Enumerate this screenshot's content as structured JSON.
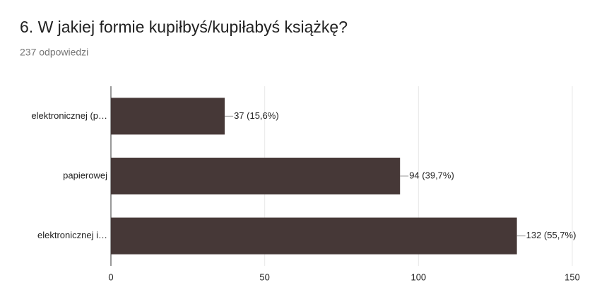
{
  "chart_data": {
    "type": "bar",
    "orientation": "horizontal",
    "title": "6. W jakiej formie kupiłbyś/kupiłabyś książkę?",
    "subtitle": "237 odpowiedzi",
    "categories": [
      "elektronicznej (p…",
      "papierowej",
      "elektronicznej i…"
    ],
    "values": [
      37,
      94,
      132
    ],
    "value_labels": [
      "37 (15,6%)",
      "94 (39,7%)",
      "132 (55,7%)"
    ],
    "color": "#463837",
    "xlim": [
      0,
      150
    ],
    "xticks": [
      0,
      50,
      100,
      150
    ],
    "grid": true
  }
}
